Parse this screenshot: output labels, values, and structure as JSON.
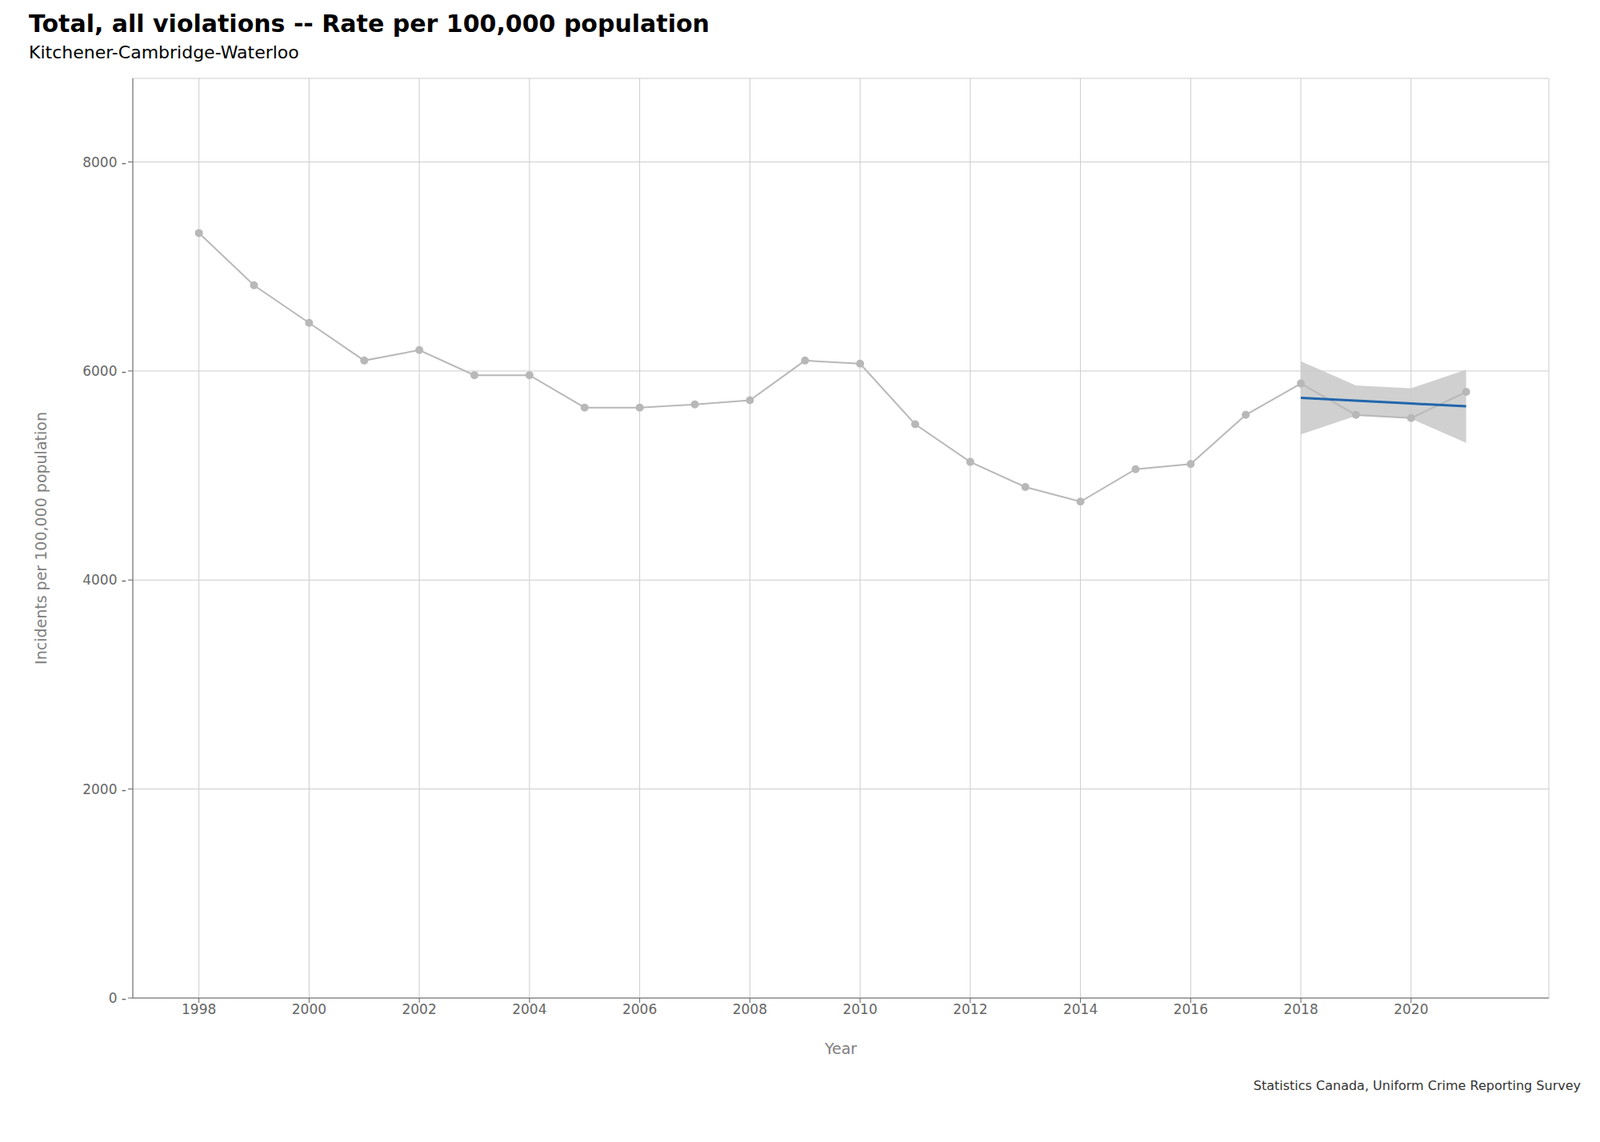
{
  "chart_data": {
    "type": "line",
    "title": "Total, all violations -- Rate per 100,000 population",
    "subtitle": "Kitchener-Cambridge-Waterloo",
    "xlabel": "Year",
    "ylabel": "Incidents per 100,000 population",
    "caption": "Statistics Canada, Uniform Crime Reporting Survey",
    "x": [
      1998,
      1999,
      2000,
      2001,
      2002,
      2003,
      2004,
      2005,
      2006,
      2007,
      2008,
      2009,
      2010,
      2011,
      2012,
      2013,
      2014,
      2015,
      2016,
      2017,
      2018,
      2019,
      2020,
      2021
    ],
    "series": [
      {
        "type": "line",
        "color": "#b8b8b8",
        "marker": "circle",
        "values": [
          7320,
          6820,
          6460,
          6100,
          6200,
          5960,
          5960,
          5650,
          5650,
          5680,
          5720,
          6100,
          6070,
          5490,
          5130,
          4890,
          4750,
          5060,
          5110,
          5580,
          5880,
          5580,
          5550,
          5800
        ]
      },
      {
        "type": "band",
        "color": "#c8c8c8",
        "lower": [
          null,
          null,
          null,
          null,
          null,
          null,
          null,
          null,
          null,
          null,
          null,
          null,
          null,
          null,
          null,
          null,
          null,
          null,
          null,
          null,
          5393,
          5570.44,
          5543.44,
          5312
        ],
        "upper": [
          null,
          null,
          null,
          null,
          null,
          null,
          null,
          null,
          null,
          null,
          null,
          null,
          null,
          null,
          null,
          null,
          null,
          null,
          null,
          null,
          6093,
          5861.56,
          5834.56,
          6012
        ]
      },
      {
        "type": "line",
        "color": "#2166ac",
        "values": [
          null,
          null,
          null,
          null,
          null,
          null,
          null,
          null,
          null,
          null,
          null,
          null,
          null,
          null,
          null,
          null,
          null,
          null,
          null,
          null,
          5743,
          5716,
          5689,
          5662
        ]
      }
    ],
    "xlim": [
      1996.8,
      2022.5
    ],
    "xticks": [
      1998,
      2000,
      2002,
      2004,
      2006,
      2008,
      2010,
      2012,
      2014,
      2016,
      2018,
      2020
    ],
    "ylim": [
      0,
      8800
    ],
    "yticks": [
      {
        "value": 0,
        "label": "0 -"
      },
      {
        "value": 2000,
        "label": "2000 -"
      },
      {
        "value": 4000,
        "label": "4000 -"
      },
      {
        "value": 6000,
        "label": "6000 -"
      },
      {
        "value": 8000,
        "label": "8000 -"
      }
    ],
    "grid": true
  }
}
